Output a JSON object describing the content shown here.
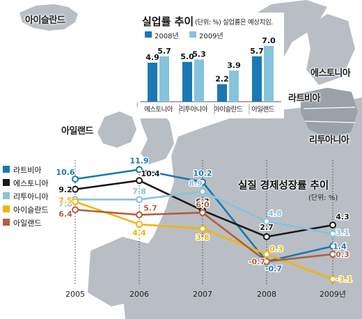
{
  "map_labels": {
    "iceland": "아이슬란드",
    "ireland": "아일랜드",
    "estonia": "에스토니아",
    "latvia": "라트비아",
    "lithuania": "리투아니아"
  },
  "colors": {
    "latvia": "#1a78b4",
    "estonia": "#1a1a1a",
    "lithuania": "#86c3dc",
    "iceland": "#f4b400",
    "ireland": "#b0603e",
    "bar2008": "#1a78b4",
    "bar2009": "#86c3dc",
    "land": "#b9bec4",
    "sea": "#ffffff"
  },
  "unemployment": {
    "title": "실업률 추이",
    "note": "(단위: %) 실업률은 예상치임.",
    "legend": [
      "2008년",
      "2009년"
    ]
  },
  "growth": {
    "title": "실질 경제성장률 추이",
    "unit": "(단위: %)"
  },
  "chart_data": [
    {
      "type": "bar",
      "title": "실업률 추이",
      "note": "(단위: %) 실업률은 예상치임.",
      "categories": [
        "에스토니아",
        "리투아니아",
        "아이슬란드",
        "아일랜드"
      ],
      "series": [
        {
          "name": "2008년",
          "values": [
            4.9,
            5.0,
            2.2,
            5.7
          ]
        },
        {
          "name": "2009년",
          "values": [
            5.7,
            5.3,
            3.9,
            7.0
          ]
        }
      ],
      "ylim": [
        0,
        8
      ]
    },
    {
      "type": "line",
      "title": "실질 경제성장률 추이",
      "unit": "(단위: %)",
      "x": [
        "2005",
        "2006",
        "2007",
        "2008",
        "2009년"
      ],
      "series": [
        {
          "name": "라트비아",
          "values": [
            10.6,
            11.9,
            10.2,
            -0.7,
            1.4
          ]
        },
        {
          "name": "에스토니아",
          "values": [
            9.2,
            10.4,
            6.3,
            2.7,
            4.3
          ]
        },
        {
          "name": "리투아니아",
          "values": [
            7.8,
            7.8,
            8.9,
            4.8,
            3.1
          ]
        },
        {
          "name": "아이슬란드",
          "values": [
            7.5,
            4.4,
            3.8,
            0.3,
            -3.1
          ]
        },
        {
          "name": "아일랜드",
          "values": [
            6.4,
            5.7,
            6.0,
            -0.7,
            0.3
          ]
        }
      ],
      "ylim": [
        -4,
        13
      ]
    }
  ]
}
